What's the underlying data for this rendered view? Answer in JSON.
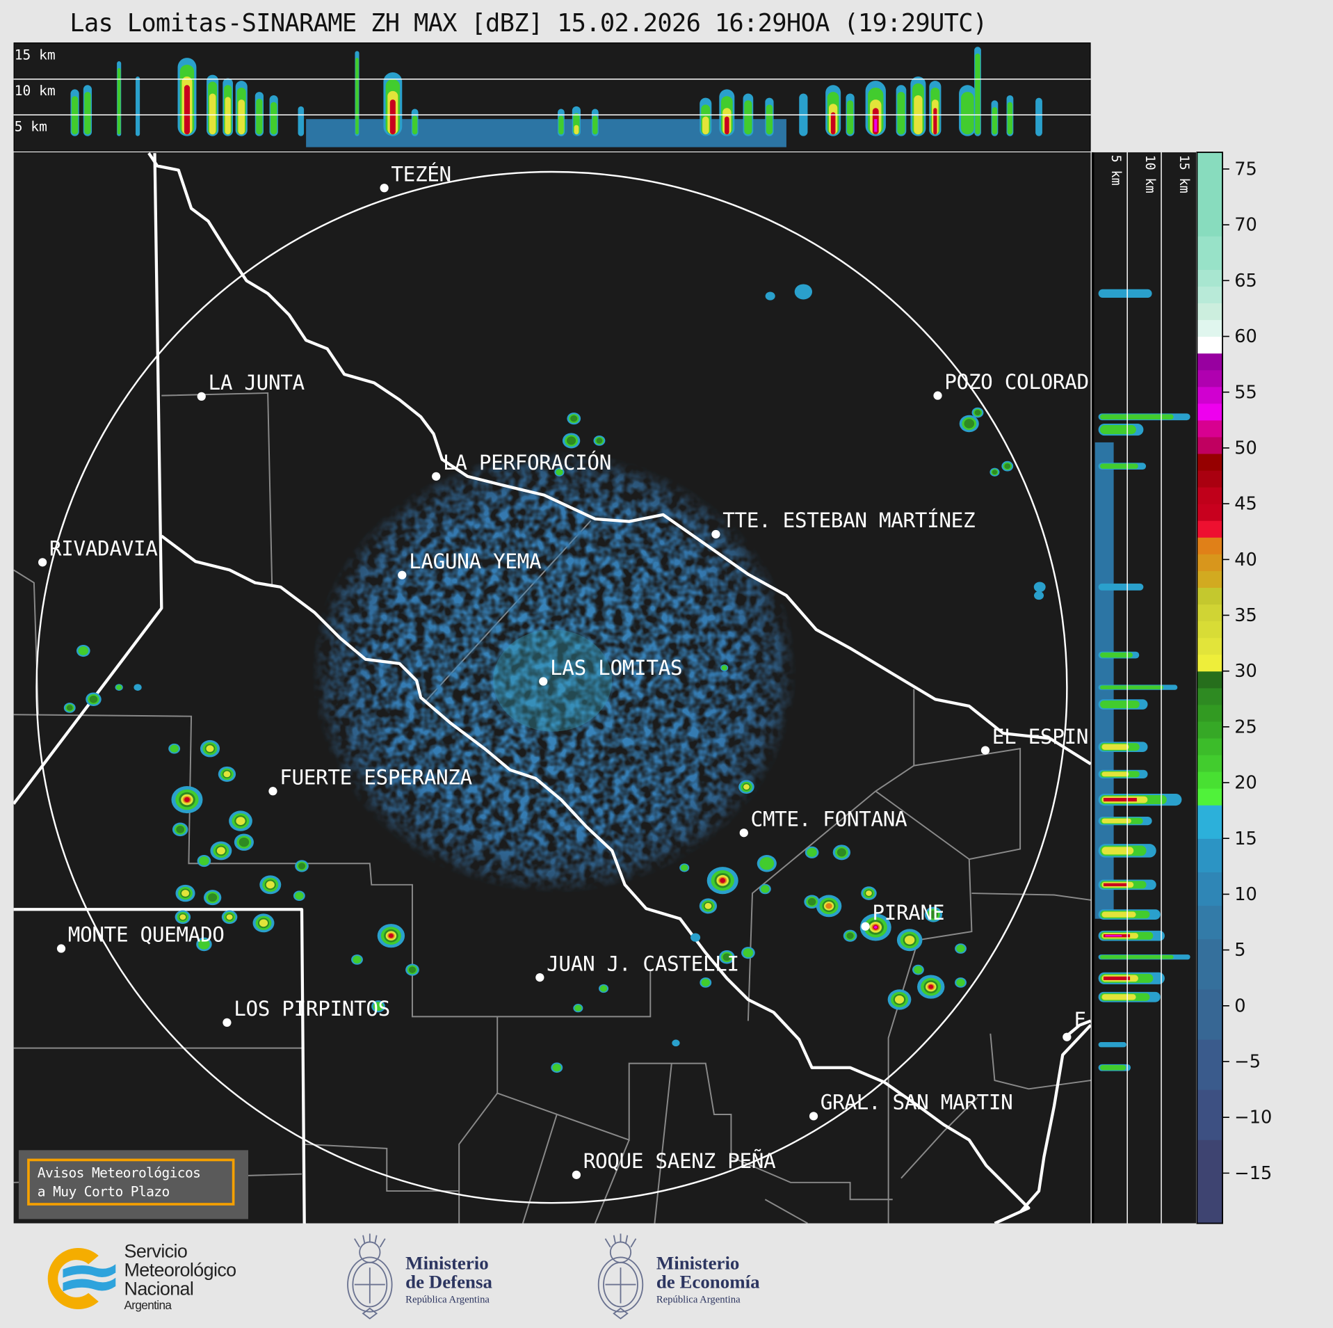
{
  "title": "Las Lomitas-SINARAME ZH MAX [dBZ] 15.02.2026 16:29HOA (19:29UTC)",
  "top_panel": {
    "height_labels": [
      "15 km",
      "10 km",
      "5 km"
    ]
  },
  "side_panel": {
    "height_labels": [
      "5 km",
      "10 km",
      "15 km"
    ]
  },
  "map": {
    "radar_site": "LAS LOMITAS",
    "range_ring": "white circle",
    "cities": [
      {
        "name": "TEZÉN"
      },
      {
        "name": "LA JUNTA"
      },
      {
        "name": "POZO COLORAD"
      },
      {
        "name": "LA PERFORACIÓN"
      },
      {
        "name": "TTE. ESTEBAN MARTÍNEZ"
      },
      {
        "name": "RIVADAVIA"
      },
      {
        "name": "LAGUNA YEMA"
      },
      {
        "name": "LAS LOMITAS"
      },
      {
        "name": "EL ESPIN"
      },
      {
        "name": "FUERTE ESPERANZA"
      },
      {
        "name": "CMTE. FONTANA"
      },
      {
        "name": "PIRANE"
      },
      {
        "name": "MONTE QUEMADO"
      },
      {
        "name": "JUAN J. CASTELLI"
      },
      {
        "name": "LOS PIRPINTOS"
      },
      {
        "name": "GRAL. SAN MARTIN"
      },
      {
        "name": "ROQUE SAENZ PEÑA"
      },
      {
        "name": "F"
      }
    ]
  },
  "colorbar": {
    "unit": "dBZ",
    "range": [
      -19.5,
      76.5
    ],
    "ticks": [
      "75",
      "70",
      "65",
      "60",
      "55",
      "50",
      "45",
      "40",
      "35",
      "30",
      "25",
      "20",
      "15",
      "10",
      "5",
      "0",
      "−5",
      "−10",
      "−15"
    ],
    "tick_values": [
      75,
      70,
      65,
      60,
      55,
      50,
      45,
      40,
      35,
      30,
      25,
      20,
      15,
      10,
      5,
      0,
      -5,
      -10,
      -15
    ],
    "bins": [
      {
        "from": -19.5,
        "to": -12,
        "color": "#3e4471"
      },
      {
        "from": -12,
        "to": -7.5,
        "color": "#3d5082"
      },
      {
        "from": -7.5,
        "to": -3,
        "color": "#3a5b8c"
      },
      {
        "from": -3,
        "to": 1.5,
        "color": "#376794"
      },
      {
        "from": 1.5,
        "to": 6,
        "color": "#35709c"
      },
      {
        "from": 6,
        "to": 9,
        "color": "#337ba8"
      },
      {
        "from": 9,
        "to": 12,
        "color": "#2f86b6"
      },
      {
        "from": 12,
        "to": 15,
        "color": "#2c94c4"
      },
      {
        "from": 15,
        "to": 18,
        "color": "#2cb0da"
      },
      {
        "from": 18,
        "to": 19.5,
        "color": "#50f23a"
      },
      {
        "from": 19.5,
        "to": 21,
        "color": "#48e032"
      },
      {
        "from": 21,
        "to": 22.5,
        "color": "#42cc2e"
      },
      {
        "from": 22.5,
        "to": 24,
        "color": "#3cbc2a"
      },
      {
        "from": 24,
        "to": 25.5,
        "color": "#36a826"
      },
      {
        "from": 25.5,
        "to": 27,
        "color": "#329a22"
      },
      {
        "from": 27,
        "to": 28.5,
        "color": "#2e8a22"
      },
      {
        "from": 28.5,
        "to": 30,
        "color": "#266e1c"
      },
      {
        "from": 30,
        "to": 31.5,
        "color": "#eeee3a"
      },
      {
        "from": 31.5,
        "to": 33,
        "color": "#e2e43a"
      },
      {
        "from": 33,
        "to": 34.5,
        "color": "#d8dc36"
      },
      {
        "from": 34.5,
        "to": 36,
        "color": "#d0d434"
      },
      {
        "from": 36,
        "to": 37.5,
        "color": "#c4c82e"
      },
      {
        "from": 37.5,
        "to": 39,
        "color": "#d2aa20"
      },
      {
        "from": 39,
        "to": 40.5,
        "color": "#d8961c"
      },
      {
        "from": 40.5,
        "to": 42,
        "color": "#e08018"
      },
      {
        "from": 42,
        "to": 43.5,
        "color": "#ee1030"
      },
      {
        "from": 43.5,
        "to": 45,
        "color": "#c8001e"
      },
      {
        "from": 45,
        "to": 46.5,
        "color": "#c0001a"
      },
      {
        "from": 46.5,
        "to": 48,
        "color": "#aa0010"
      },
      {
        "from": 48,
        "to": 49.5,
        "color": "#960000"
      },
      {
        "from": 49.5,
        "to": 51,
        "color": "#c00060"
      },
      {
        "from": 51,
        "to": 52.5,
        "color": "#d80090"
      },
      {
        "from": 52.5,
        "to": 54,
        "color": "#ee00ee"
      },
      {
        "from": 54,
        "to": 55.5,
        "color": "#d000d0"
      },
      {
        "from": 55.5,
        "to": 57,
        "color": "#b000b0"
      },
      {
        "from": 57,
        "to": 58.5,
        "color": "#9800a0"
      },
      {
        "from": 58.5,
        "to": 60,
        "color": "#ffffff"
      },
      {
        "from": 60,
        "to": 61.5,
        "color": "#e0f6ee"
      },
      {
        "from": 61.5,
        "to": 63,
        "color": "#cceede"
      },
      {
        "from": 63,
        "to": 64.5,
        "color": "#b8ead8"
      },
      {
        "from": 64.5,
        "to": 66,
        "color": "#a8e6d0"
      },
      {
        "from": 66,
        "to": 69,
        "color": "#98e2c8"
      },
      {
        "from": 69,
        "to": 76.5,
        "color": "#88dcbe"
      }
    ]
  },
  "warning_box": {
    "line1": "Avisos Meteorológicos",
    "line2": "a Muy Corto Plazo",
    "border_color": "#f5a000"
  },
  "logos": {
    "smn": {
      "line1": "Servicio",
      "line2": "Meteorológico",
      "line3": "Nacional",
      "line4": "Argentina"
    },
    "defensa": {
      "line1": "Ministerio",
      "line2": "de Defensa",
      "line3": "República Argentina"
    },
    "economia": {
      "line1": "Ministerio",
      "line2": "de Economía",
      "line3": "República Argentina"
    }
  },
  "colors": {
    "background": "#e6e6e6",
    "map_background": "#1b1b1b",
    "clutter_blue": "#3479b0",
    "boundary_white": "#ffffff",
    "boundary_gray": "#8a8a8a"
  }
}
